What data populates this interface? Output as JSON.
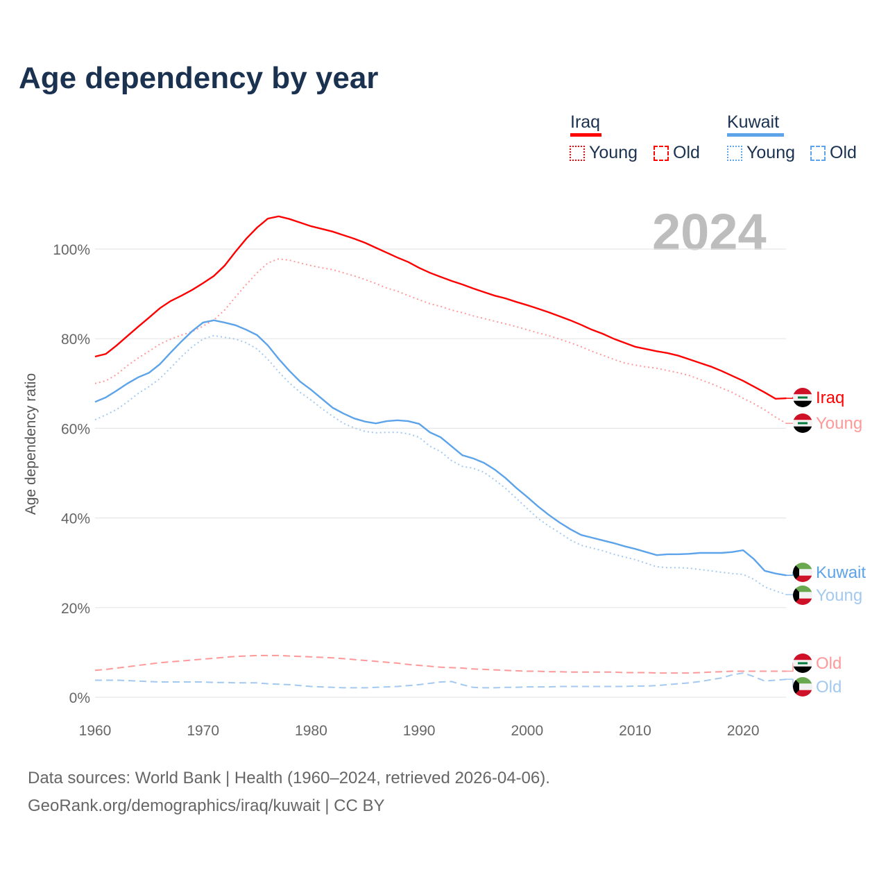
{
  "title": "Age dependency by year",
  "legend": {
    "groups": [
      {
        "name": "Iraq",
        "color": "#ff0000",
        "items": [
          "Young",
          "Old"
        ]
      },
      {
        "name": "Kuwait",
        "color": "#5ca3ea",
        "items": [
          "Young",
          "Old"
        ]
      }
    ]
  },
  "year_label": "2024",
  "source_line1": "Data sources: World Bank | Health (1960–2024, retrieved 2026-04-06).",
  "source_line2": "GeoRank.org/demographics/iraq/kuwait | CC BY",
  "chart_data": {
    "type": "line",
    "title": "Age dependency by year",
    "xlabel": "",
    "ylabel": "Age dependency ratio",
    "x_start": 1960,
    "x_end": 2024,
    "xlim": [
      1960,
      2024
    ],
    "ylim": [
      0,
      110
    ],
    "x_ticks": [
      "1960",
      "1970",
      "1980",
      "1990",
      "2000",
      "2010",
      "2020"
    ],
    "y_ticks": [
      "0%",
      "20%",
      "40%",
      "60%",
      "80%",
      "100%"
    ],
    "grid": true,
    "series": [
      {
        "name": "Iraq",
        "label": "Iraq",
        "country": "Iraq",
        "style": "solid",
        "color": "#ff0000",
        "values": [
          76.0,
          76.6,
          78.5,
          80.6,
          82.7,
          84.7,
          86.8,
          88.4,
          89.6,
          90.9,
          92.4,
          94.0,
          96.3,
          99.4,
          102.3,
          104.8,
          106.8,
          107.3,
          106.7,
          105.9,
          105.1,
          104.5,
          103.9,
          103.1,
          102.3,
          101.4,
          100.3,
          99.2,
          98.1,
          97.1,
          95.8,
          94.7,
          93.8,
          92.9,
          92.1,
          91.2,
          90.4,
          89.6,
          89.0,
          88.2,
          87.5,
          86.7,
          85.9,
          85.0,
          84.1,
          83.1,
          82.0,
          81.1,
          80.0,
          79.1,
          78.2,
          77.7,
          77.2,
          76.8,
          76.2,
          75.4,
          74.6,
          73.8,
          72.8,
          71.7,
          70.6,
          69.3,
          68.0,
          66.6,
          66.7
        ]
      },
      {
        "name": "Iraq Young",
        "label": "Young",
        "country": "Iraq",
        "style": "dotted",
        "color": "#ff9999",
        "values": [
          70.0,
          70.6,
          72.0,
          74.0,
          75.7,
          77.2,
          78.8,
          79.9,
          80.8,
          81.6,
          82.8,
          84.2,
          86.4,
          89.3,
          92.1,
          94.7,
          96.9,
          97.8,
          97.5,
          96.9,
          96.3,
          95.8,
          95.4,
          94.7,
          94.0,
          93.2,
          92.3,
          91.3,
          90.6,
          89.6,
          88.7,
          87.8,
          87.2,
          86.4,
          85.8,
          85.1,
          84.5,
          83.9,
          83.3,
          82.7,
          82.0,
          81.3,
          80.7,
          79.9,
          79.1,
          78.2,
          77.2,
          76.3,
          75.4,
          74.6,
          74.1,
          73.7,
          73.4,
          72.9,
          72.4,
          71.8,
          70.9,
          70.0,
          69.0,
          68.0,
          66.7,
          65.5,
          64.1,
          62.5,
          61.1
        ]
      },
      {
        "name": "Kuwait",
        "label": "Kuwait",
        "country": "Kuwait",
        "style": "solid",
        "color": "#5ca3ea",
        "values": [
          65.9,
          66.9,
          68.4,
          70.0,
          71.4,
          72.4,
          74.3,
          76.9,
          79.4,
          81.7,
          83.6,
          84.1,
          83.6,
          83.0,
          82.0,
          80.8,
          78.5,
          75.5,
          72.8,
          70.4,
          68.6,
          66.6,
          64.6,
          63.3,
          62.2,
          61.5,
          61.1,
          61.6,
          61.8,
          61.6,
          61.0,
          59.1,
          58.0,
          56.0,
          54.0,
          53.3,
          52.3,
          50.8,
          48.9,
          46.7,
          44.7,
          42.6,
          40.7,
          39.0,
          37.5,
          36.2,
          35.6,
          35.0,
          34.4,
          33.7,
          33.1,
          32.4,
          31.7,
          31.9,
          31.9,
          32.0,
          32.2,
          32.2,
          32.2,
          32.4,
          32.8,
          30.8,
          28.2,
          27.6,
          27.2
        ]
      },
      {
        "name": "Kuwait Young",
        "label": "Young",
        "country": "Kuwait",
        "style": "dotted",
        "color": "#a3c9f0",
        "values": [
          61.9,
          63.0,
          64.2,
          65.9,
          67.8,
          69.3,
          71.1,
          73.5,
          76.0,
          78.2,
          79.9,
          80.7,
          80.3,
          79.9,
          79.1,
          77.7,
          75.4,
          72.6,
          70.1,
          68.0,
          66.3,
          64.4,
          62.7,
          61.1,
          60.1,
          59.3,
          59.0,
          59.1,
          59.1,
          58.8,
          58.0,
          56.0,
          54.8,
          52.8,
          51.5,
          51.1,
          50.2,
          48.5,
          46.6,
          44.4,
          42.1,
          39.9,
          38.2,
          36.7,
          35.1,
          33.9,
          33.3,
          32.7,
          31.9,
          31.3,
          30.7,
          29.9,
          29.1,
          28.9,
          28.9,
          28.8,
          28.5,
          28.2,
          27.9,
          27.6,
          27.4,
          26.3,
          24.6,
          23.7,
          22.9
        ]
      },
      {
        "name": "Iraq Old",
        "label": "Old",
        "country": "Iraq",
        "style": "dashed",
        "color": "#ff9999",
        "values": [
          6.0,
          6.2,
          6.5,
          6.8,
          7.1,
          7.4,
          7.7,
          7.9,
          8.1,
          8.3,
          8.5,
          8.7,
          8.9,
          9.1,
          9.2,
          9.3,
          9.3,
          9.3,
          9.2,
          9.1,
          9.0,
          8.9,
          8.8,
          8.6,
          8.4,
          8.2,
          8.0,
          7.8,
          7.6,
          7.3,
          7.1,
          6.9,
          6.7,
          6.6,
          6.5,
          6.3,
          6.2,
          6.1,
          6.0,
          5.9,
          5.8,
          5.8,
          5.7,
          5.7,
          5.6,
          5.6,
          5.6,
          5.6,
          5.6,
          5.5,
          5.5,
          5.5,
          5.4,
          5.4,
          5.4,
          5.4,
          5.5,
          5.6,
          5.7,
          5.8,
          5.8,
          5.8,
          5.8,
          5.8,
          5.8
        ]
      },
      {
        "name": "Kuwait Old",
        "label": "Old",
        "country": "Kuwait",
        "style": "dashed",
        "color": "#a3c9f0",
        "values": [
          3.8,
          3.8,
          3.8,
          3.7,
          3.6,
          3.5,
          3.4,
          3.4,
          3.4,
          3.4,
          3.4,
          3.3,
          3.3,
          3.2,
          3.2,
          3.2,
          3.0,
          2.9,
          2.8,
          2.6,
          2.4,
          2.3,
          2.2,
          2.1,
          2.1,
          2.1,
          2.2,
          2.3,
          2.4,
          2.6,
          2.8,
          3.1,
          3.4,
          3.5,
          2.8,
          2.2,
          2.1,
          2.1,
          2.2,
          2.2,
          2.3,
          2.3,
          2.3,
          2.4,
          2.4,
          2.4,
          2.4,
          2.4,
          2.4,
          2.4,
          2.5,
          2.5,
          2.6,
          2.8,
          3.0,
          3.2,
          3.5,
          3.9,
          4.3,
          5.0,
          5.4,
          4.6,
          3.6,
          3.8,
          4.0
        ]
      }
    ]
  }
}
